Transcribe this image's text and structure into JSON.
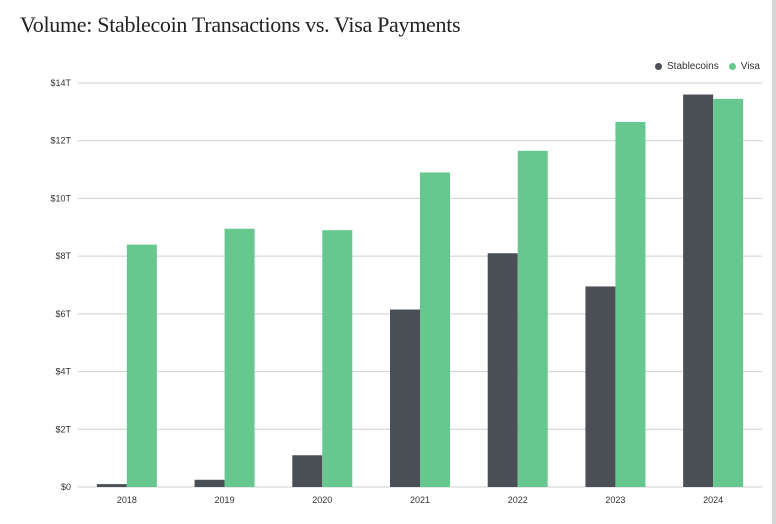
{
  "title": "Volume: Stablecoin Transactions vs. Visa Payments",
  "colors": {
    "stablecoins": "#4a4e55",
    "visa": "#66c78f",
    "grid": "#cfcfcf"
  },
  "chart_data": {
    "type": "bar",
    "title": "Volume: Stablecoin Transactions vs. Visa Payments",
    "xlabel": "",
    "ylabel": "",
    "categories": [
      "2018",
      "2019",
      "2020",
      "2021",
      "2022",
      "2023",
      "2024"
    ],
    "series": [
      {
        "name": "Stablecoins",
        "values": [
          0.1,
          0.25,
          1.1,
          6.15,
          8.1,
          6.95,
          13.6
        ]
      },
      {
        "name": "Visa",
        "values": [
          8.4,
          8.95,
          8.9,
          10.9,
          11.65,
          12.65,
          13.45
        ]
      }
    ],
    "ylim": [
      0,
      14
    ],
    "yticks": [
      0,
      2,
      4,
      6,
      8,
      10,
      12,
      14
    ],
    "ytick_labels": [
      "$0",
      "$2T",
      "$4T",
      "$6T",
      "$8T",
      "$10T",
      "$12T",
      "$14T"
    ],
    "grid": true,
    "legend": "top-right"
  }
}
